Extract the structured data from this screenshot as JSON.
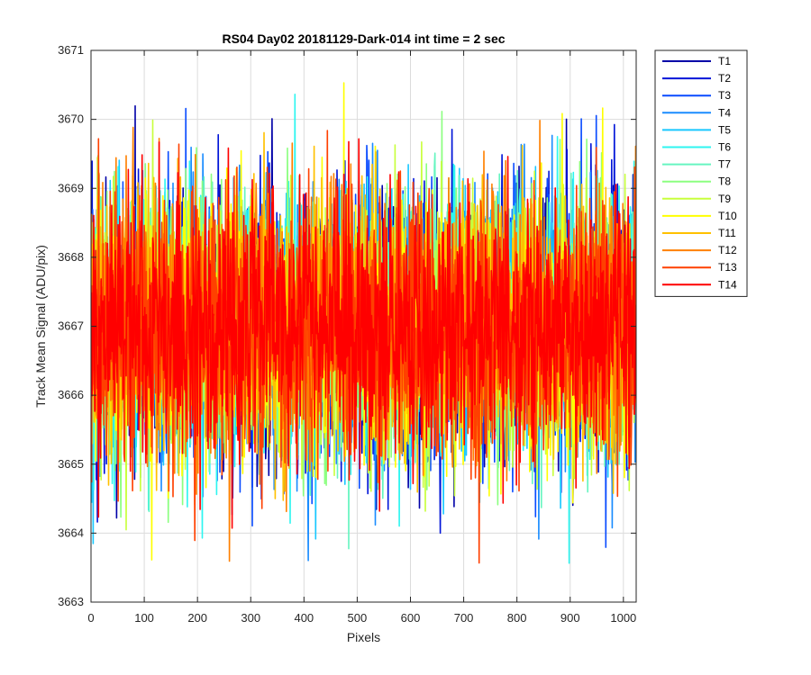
{
  "chart_data": {
    "type": "line",
    "title": "RS04 Day02 20181129-Dark-014 int time = 2 sec",
    "xlabel": "Pixels",
    "ylabel": "Track Mean Signal (ADU/pix)",
    "xlim": [
      0,
      1024
    ],
    "ylim": [
      3663,
      3671
    ],
    "xticks": [
      0,
      100,
      200,
      300,
      400,
      500,
      600,
      700,
      800,
      900,
      1000
    ],
    "yticks": [
      3663,
      3664,
      3665,
      3666,
      3667,
      3668,
      3669,
      3670,
      3671
    ],
    "grid": true,
    "legend_position": "outside-top-right",
    "n_points": 1024,
    "series": [
      {
        "name": "T1",
        "color": "#0000a8",
        "mean": 3667.0,
        "std": 0.95
      },
      {
        "name": "T2",
        "color": "#0014d8",
        "mean": 3667.0,
        "std": 0.95
      },
      {
        "name": "T3",
        "color": "#0a4cff",
        "mean": 3667.0,
        "std": 0.95
      },
      {
        "name": "T4",
        "color": "#1a8cff",
        "mean": 3667.0,
        "std": 0.95
      },
      {
        "name": "T5",
        "color": "#19c8ff",
        "mean": 3667.0,
        "std": 0.95
      },
      {
        "name": "T6",
        "color": "#2ef5f0",
        "mean": 3667.0,
        "std": 0.95
      },
      {
        "name": "T7",
        "color": "#66f5c0",
        "mean": 3667.0,
        "std": 0.95
      },
      {
        "name": "T8",
        "color": "#8cff80",
        "mean": 3667.0,
        "std": 0.95
      },
      {
        "name": "T9",
        "color": "#c8ff3c",
        "mean": 3667.0,
        "std": 0.95
      },
      {
        "name": "T10",
        "color": "#ffff00",
        "mean": 3667.0,
        "std": 0.95
      },
      {
        "name": "T11",
        "color": "#ffc000",
        "mean": 3667.0,
        "std": 0.95
      },
      {
        "name": "T12",
        "color": "#ff8000",
        "mean": 3667.0,
        "std": 0.95
      },
      {
        "name": "T13",
        "color": "#ff4000",
        "mean": 3667.0,
        "std": 0.95
      },
      {
        "name": "T14",
        "color": "#ff0000",
        "mean": 3667.0,
        "std": 0.95
      }
    ]
  }
}
